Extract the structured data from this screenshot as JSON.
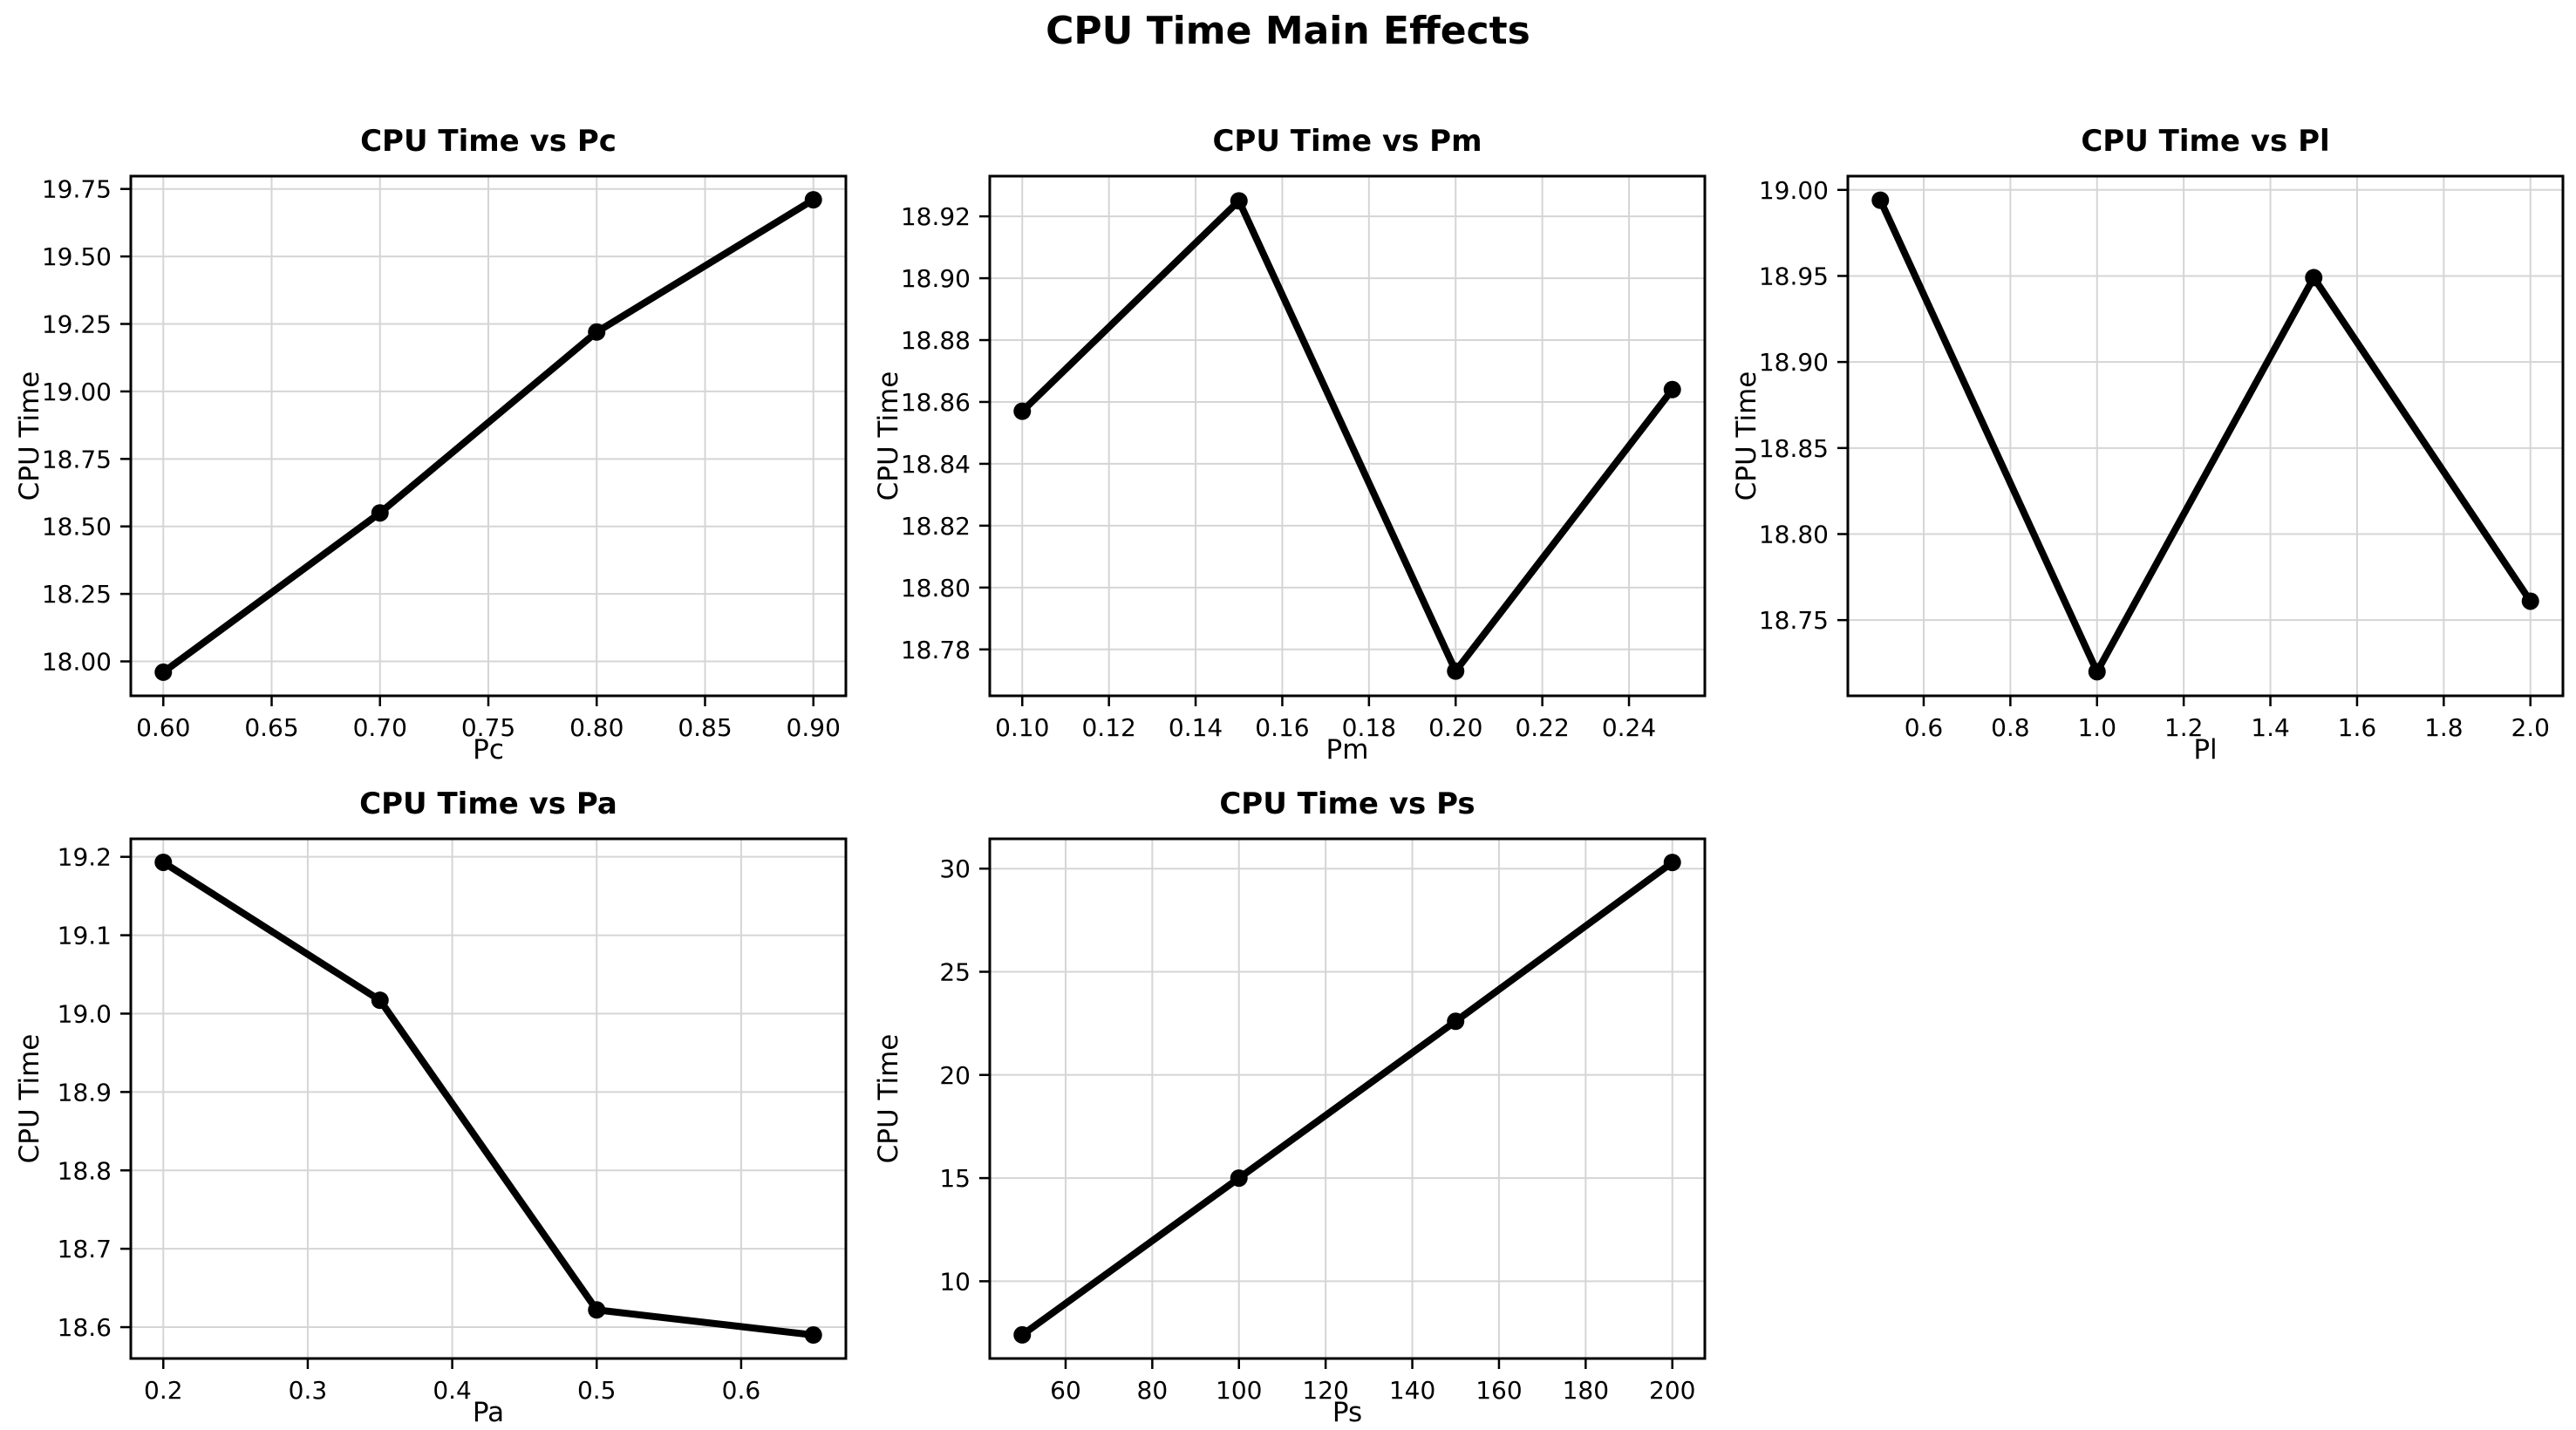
{
  "figure": {
    "suptitle": "CPU Time Main Effects"
  },
  "style": {
    "background": "#ffffff",
    "grid_color": "#d5d5d5",
    "axis_color": "#000000",
    "text_color": "#000000",
    "series_color": "#000000"
  },
  "chart_data": [
    {
      "type": "line",
      "title": "CPU Time vs Pc",
      "xlabel": "Pc",
      "ylabel": "CPU Time",
      "grid": true,
      "x": [
        0.6,
        0.7,
        0.8,
        0.9
      ],
      "y": [
        17.96,
        18.55,
        19.22,
        19.71
      ],
      "xlim": [
        0.585,
        0.915
      ],
      "ylim": [
        17.8725,
        19.7975
      ],
      "xticks": [
        0.6,
        0.65,
        0.7,
        0.75,
        0.8,
        0.85,
        0.9
      ],
      "xtick_labels": [
        "0.60",
        "0.65",
        "0.70",
        "0.75",
        "0.80",
        "0.85",
        "0.90"
      ],
      "yticks": [
        18.0,
        18.25,
        18.5,
        18.75,
        19.0,
        19.25,
        19.5,
        19.75
      ],
      "ytick_labels": [
        "18.00",
        "18.25",
        "18.50",
        "18.75",
        "19.00",
        "19.25",
        "19.50",
        "19.75"
      ]
    },
    {
      "type": "line",
      "title": "CPU Time vs Pm",
      "xlabel": "Pm",
      "ylabel": "CPU Time",
      "grid": true,
      "x": [
        0.1,
        0.15,
        0.2,
        0.25
      ],
      "y": [
        18.857,
        18.925,
        18.773,
        18.864
      ],
      "xlim": [
        0.0925,
        0.2575
      ],
      "ylim": [
        18.765,
        18.933
      ],
      "xticks": [
        0.1,
        0.12,
        0.14,
        0.16,
        0.18,
        0.2,
        0.22,
        0.24
      ],
      "xtick_labels": [
        "0.10",
        "0.12",
        "0.14",
        "0.16",
        "0.18",
        "0.20",
        "0.22",
        "0.24"
      ],
      "yticks": [
        18.78,
        18.8,
        18.82,
        18.84,
        18.86,
        18.88,
        18.9,
        18.92
      ],
      "ytick_labels": [
        "18.78",
        "18.80",
        "18.82",
        "18.84",
        "18.86",
        "18.88",
        "18.90",
        "18.92"
      ]
    },
    {
      "type": "line",
      "title": "CPU Time vs Pl",
      "xlabel": "Pl",
      "ylabel": "CPU Time",
      "grid": true,
      "x": [
        0.5,
        1.0,
        1.5,
        2.0
      ],
      "y": [
        18.994,
        18.72,
        18.949,
        18.761
      ],
      "xlim": [
        0.425,
        2.075
      ],
      "ylim": [
        18.706,
        19.008
      ],
      "xticks": [
        0.6,
        0.8,
        1.0,
        1.2,
        1.4,
        1.6,
        1.8,
        2.0
      ],
      "xtick_labels": [
        "0.6",
        "0.8",
        "1.0",
        "1.2",
        "1.4",
        "1.6",
        "1.8",
        "2.0"
      ],
      "yticks": [
        18.75,
        18.8,
        18.85,
        18.9,
        18.95,
        19.0
      ],
      "ytick_labels": [
        "18.75",
        "18.80",
        "18.85",
        "18.90",
        "18.95",
        "19.00"
      ]
    },
    {
      "type": "line",
      "title": "CPU Time vs Pa",
      "xlabel": "Pa",
      "ylabel": "CPU Time",
      "grid": true,
      "x": [
        0.2,
        0.35,
        0.5,
        0.65
      ],
      "y": [
        19.193,
        19.017,
        18.622,
        18.59
      ],
      "xlim": [
        0.1775,
        0.6725
      ],
      "ylim": [
        18.56,
        19.223
      ],
      "xticks": [
        0.2,
        0.3,
        0.4,
        0.5,
        0.6
      ],
      "xtick_labels": [
        "0.2",
        "0.3",
        "0.4",
        "0.5",
        "0.6"
      ],
      "yticks": [
        18.6,
        18.7,
        18.8,
        18.9,
        19.0,
        19.1,
        19.2
      ],
      "ytick_labels": [
        "18.6",
        "18.7",
        "18.8",
        "18.9",
        "19.0",
        "19.1",
        "19.2"
      ]
    },
    {
      "type": "line",
      "title": "CPU Time vs Ps",
      "xlabel": "Ps",
      "ylabel": "CPU Time",
      "grid": true,
      "x": [
        50,
        100,
        150,
        200
      ],
      "y": [
        7.4,
        15.0,
        22.6,
        30.3
      ],
      "xlim": [
        42.5,
        207.5
      ],
      "ylim": [
        6.255,
        31.445
      ],
      "xticks": [
        60,
        80,
        100,
        120,
        140,
        160,
        180,
        200
      ],
      "xtick_labels": [
        "60",
        "80",
        "100",
        "120",
        "140",
        "160",
        "180",
        "200"
      ],
      "yticks": [
        10,
        15,
        20,
        25,
        30
      ],
      "ytick_labels": [
        "10",
        "15",
        "20",
        "25",
        "30"
      ]
    }
  ]
}
